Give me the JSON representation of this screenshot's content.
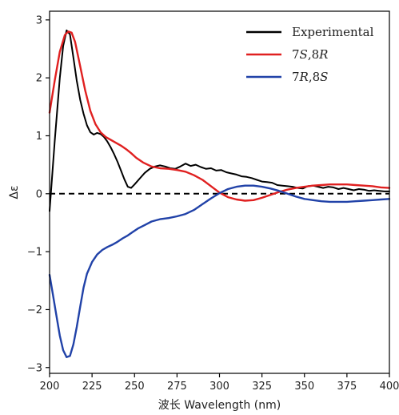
{
  "chart_data": {
    "type": "line",
    "xlabel": "波长 Wavelength (nm)",
    "ylabel": "Δε",
    "xlim": [
      200,
      400
    ],
    "ylim": [
      -3.1,
      3.15
    ],
    "xticks": [
      200,
      225,
      250,
      275,
      300,
      325,
      350,
      375,
      400
    ],
    "yticks": [
      -3,
      -2,
      -1,
      0,
      1,
      2,
      3
    ],
    "zero_line": "dashed",
    "legend_position": "top-right",
    "series": [
      {
        "name": "Experimental",
        "color": "#000000",
        "x": [
          200,
          203,
          206,
          208,
          210,
          212,
          214,
          216,
          218,
          220,
          222,
          224,
          226,
          228,
          230,
          232,
          234,
          236,
          238,
          240,
          242,
          244,
          246,
          248,
          250,
          253,
          256,
          259,
          262,
          265,
          268,
          271,
          274,
          277,
          280,
          283,
          286,
          289,
          292,
          295,
          298,
          301,
          304,
          307,
          310,
          313,
          316,
          319,
          322,
          325,
          328,
          331,
          334,
          337,
          340,
          343,
          346,
          349,
          352,
          355,
          358,
          361,
          364,
          367,
          370,
          373,
          376,
          379,
          382,
          385,
          388,
          391,
          394,
          397,
          400
        ],
        "y": [
          -0.3,
          0.9,
          2.0,
          2.55,
          2.82,
          2.75,
          2.35,
          1.95,
          1.62,
          1.38,
          1.18,
          1.06,
          1.02,
          1.05,
          1.03,
          0.98,
          0.9,
          0.8,
          0.68,
          0.55,
          0.4,
          0.25,
          0.12,
          0.1,
          0.16,
          0.26,
          0.36,
          0.43,
          0.47,
          0.49,
          0.47,
          0.44,
          0.43,
          0.47,
          0.52,
          0.48,
          0.5,
          0.46,
          0.43,
          0.44,
          0.4,
          0.41,
          0.37,
          0.35,
          0.33,
          0.3,
          0.29,
          0.27,
          0.24,
          0.21,
          0.2,
          0.19,
          0.15,
          0.14,
          0.13,
          0.12,
          0.1,
          0.09,
          0.13,
          0.14,
          0.12,
          0.1,
          0.12,
          0.11,
          0.08,
          0.1,
          0.08,
          0.06,
          0.08,
          0.07,
          0.05,
          0.06,
          0.05,
          0.04,
          0.04
        ]
      },
      {
        "name": "7S,8R",
        "color": "#e02020",
        "x": [
          200,
          203,
          206,
          209,
          211,
          213,
          215,
          218,
          221,
          224,
          227,
          230,
          233,
          236,
          239,
          242,
          245,
          248,
          251,
          255,
          260,
          265,
          270,
          275,
          280,
          285,
          290,
          295,
          300,
          305,
          310,
          315,
          320,
          325,
          330,
          335,
          340,
          345,
          350,
          355,
          360,
          365,
          370,
          375,
          380,
          385,
          390,
          395,
          400
        ],
        "y": [
          1.4,
          1.95,
          2.45,
          2.74,
          2.8,
          2.78,
          2.62,
          2.2,
          1.78,
          1.43,
          1.2,
          1.06,
          0.98,
          0.93,
          0.88,
          0.83,
          0.77,
          0.7,
          0.62,
          0.54,
          0.47,
          0.44,
          0.43,
          0.41,
          0.38,
          0.32,
          0.24,
          0.13,
          0.02,
          -0.06,
          -0.1,
          -0.12,
          -0.11,
          -0.07,
          -0.02,
          0.03,
          0.07,
          0.1,
          0.12,
          0.14,
          0.15,
          0.16,
          0.16,
          0.16,
          0.15,
          0.14,
          0.13,
          0.11,
          0.1
        ]
      },
      {
        "name": "7R,8S",
        "color": "#2142a8",
        "x": [
          200,
          202,
          204,
          206,
          208,
          210,
          212,
          214,
          216,
          218,
          220,
          222,
          225,
          228,
          231,
          234,
          237,
          240,
          243,
          246,
          249,
          252,
          256,
          260,
          265,
          270,
          275,
          280,
          285,
          290,
          295,
          300,
          305,
          310,
          315,
          320,
          325,
          330,
          335,
          340,
          345,
          350,
          355,
          360,
          365,
          370,
          375,
          380,
          385,
          390,
          395,
          400
        ],
        "y": [
          -1.4,
          -1.75,
          -2.1,
          -2.45,
          -2.7,
          -2.82,
          -2.8,
          -2.6,
          -2.3,
          -1.95,
          -1.62,
          -1.38,
          -1.18,
          -1.05,
          -0.97,
          -0.92,
          -0.88,
          -0.83,
          -0.77,
          -0.72,
          -0.66,
          -0.6,
          -0.54,
          -0.48,
          -0.44,
          -0.42,
          -0.39,
          -0.35,
          -0.28,
          -0.18,
          -0.08,
          0.01,
          0.08,
          0.12,
          0.14,
          0.14,
          0.12,
          0.09,
          0.05,
          0.0,
          -0.05,
          -0.09,
          -0.11,
          -0.13,
          -0.14,
          -0.14,
          -0.14,
          -0.13,
          -0.12,
          -0.11,
          -0.1,
          -0.09
        ]
      }
    ]
  }
}
